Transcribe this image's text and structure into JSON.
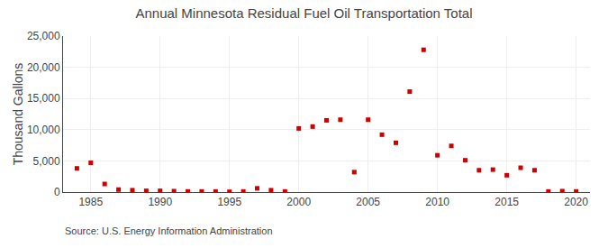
{
  "chart_data": {
    "type": "scatter",
    "title": "Annual Minnesota Residual Fuel Oil Transportation Total",
    "ylabel": "Thousand Gallons",
    "annotations": [
      "Source: U.S. Energy Information Administration"
    ],
    "color": "#cc0000",
    "marker": "square",
    "grid": true,
    "xlim": [
      1983,
      2021
    ],
    "xticks": [
      1985,
      1990,
      1995,
      2000,
      2005,
      2010,
      2015,
      2020
    ],
    "ylim": [
      0,
      25000
    ],
    "yticks": [
      0,
      {
        "value": 5000,
        "label": "5,000"
      },
      {
        "value": 10000,
        "label": "10,000"
      },
      {
        "value": 15000,
        "label": "15,000"
      },
      {
        "value": 20000,
        "label": "20,000"
      },
      {
        "value": 25000,
        "label": "25,000"
      }
    ],
    "x": [
      1984,
      1985,
      1986,
      1987,
      1988,
      1989,
      1990,
      1991,
      1992,
      1993,
      1994,
      1995,
      1996,
      1997,
      1998,
      1999,
      2000,
      2001,
      2002,
      2003,
      2004,
      2005,
      2006,
      2007,
      2008,
      2009,
      2010,
      2011,
      2012,
      2013,
      2014,
      2015,
      2016,
      2017,
      2018,
      2019,
      2020
    ],
    "values": [
      3800,
      4700,
      1300,
      400,
      300,
      200,
      200,
      150,
      100,
      100,
      100,
      50,
      100,
      600,
      300,
      100,
      10200,
      10500,
      11500,
      11600,
      3200,
      11600,
      9200,
      7900,
      16100,
      22800,
      5900,
      7400,
      5100,
      3500,
      3600,
      2700,
      3900,
      3500,
      100,
      150,
      100
    ]
  }
}
